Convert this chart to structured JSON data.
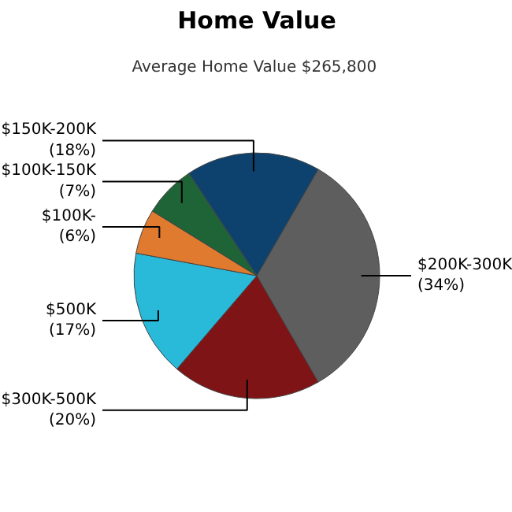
{
  "chart_data": {
    "type": "pie",
    "title": "Home Value",
    "subtitle": "Average Home Value  $265,800",
    "categories": [
      "$200K-300K",
      "$300K-500K",
      "$500K",
      "$100K-",
      "$100K-150K",
      "$150K-200K"
    ],
    "values": [
      34,
      20,
      17,
      6,
      7,
      18
    ],
    "value_labels": [
      "(34%)",
      "(20%)",
      "(17%)",
      "(6%)",
      "(7%)",
      "(18%)"
    ],
    "colors": [
      "#5e5e5e",
      "#7e1416",
      "#29b9d9",
      "#e07a2e",
      "#1e6437",
      "#0e426e"
    ]
  }
}
